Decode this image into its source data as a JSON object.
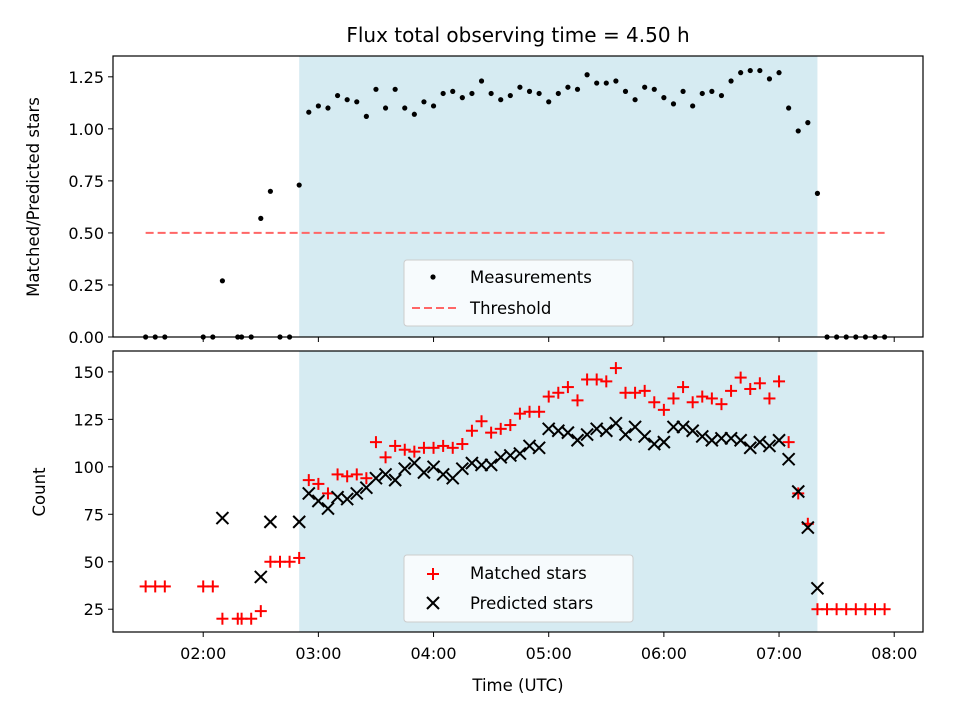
{
  "chart_data": {
    "title": "Flux total observing time = 4.50 h",
    "xlabel": "Time (UTC)",
    "x_ticks": [
      "02:00",
      "03:00",
      "04:00",
      "05:00",
      "06:00",
      "07:00",
      "08:00"
    ],
    "x_range": [
      "01:13",
      "08:15"
    ],
    "observing_window": [
      "02:50",
      "07:20"
    ],
    "colors": {
      "window": "#add8e6",
      "measurements": "#000000",
      "threshold": "#ff6666",
      "matched": "#ff0000",
      "predicted": "#000000"
    },
    "panels": [
      {
        "type": "scatter",
        "ylabel": "Matched/Predicted stars",
        "ylim": [
          0,
          1.35
        ],
        "y_ticks": [
          "0.00",
          "0.25",
          "0.50",
          "0.75",
          "1.00",
          "1.25"
        ],
        "legend": "lower-center",
        "series": [
          {
            "name": "Measurements",
            "marker": "dot",
            "points": [
              [
                "01:30",
                0
              ],
              [
                "01:35",
                0
              ],
              [
                "01:40",
                0
              ],
              [
                "02:00",
                0
              ],
              [
                "02:05",
                0
              ],
              [
                "02:10",
                0.27
              ],
              [
                "02:18",
                0
              ],
              [
                "02:20",
                0
              ],
              [
                "02:25",
                0
              ],
              [
                "02:30",
                0.57
              ],
              [
                "02:35",
                0.7
              ],
              [
                "02:40",
                0
              ],
              [
                "02:45",
                0
              ],
              [
                "02:50",
                0.73
              ],
              [
                "02:55",
                1.08
              ],
              [
                "03:00",
                1.11
              ],
              [
                "03:05",
                1.1
              ],
              [
                "03:10",
                1.16
              ],
              [
                "03:15",
                1.14
              ],
              [
                "03:20",
                1.13
              ],
              [
                "03:25",
                1.06
              ],
              [
                "03:30",
                1.19
              ],
              [
                "03:35",
                1.1
              ],
              [
                "03:40",
                1.19
              ],
              [
                "03:45",
                1.1
              ],
              [
                "03:50",
                1.07
              ],
              [
                "03:55",
                1.13
              ],
              [
                "04:00",
                1.11
              ],
              [
                "04:05",
                1.17
              ],
              [
                "04:10",
                1.18
              ],
              [
                "04:15",
                1.15
              ],
              [
                "04:20",
                1.17
              ],
              [
                "04:25",
                1.23
              ],
              [
                "04:30",
                1.17
              ],
              [
                "04:35",
                1.14
              ],
              [
                "04:40",
                1.16
              ],
              [
                "04:45",
                1.2
              ],
              [
                "04:50",
                1.18
              ],
              [
                "04:55",
                1.17
              ],
              [
                "05:00",
                1.13
              ],
              [
                "05:05",
                1.17
              ],
              [
                "05:10",
                1.2
              ],
              [
                "05:15",
                1.19
              ],
              [
                "05:20",
                1.26
              ],
              [
                "05:25",
                1.22
              ],
              [
                "05:30",
                1.22
              ],
              [
                "05:35",
                1.23
              ],
              [
                "05:40",
                1.18
              ],
              [
                "05:45",
                1.14
              ],
              [
                "05:50",
                1.2
              ],
              [
                "05:55",
                1.19
              ],
              [
                "06:00",
                1.15
              ],
              [
                "06:05",
                1.12
              ],
              [
                "06:10",
                1.18
              ],
              [
                "06:15",
                1.11
              ],
              [
                "06:20",
                1.17
              ],
              [
                "06:25",
                1.18
              ],
              [
                "06:30",
                1.16
              ],
              [
                "06:35",
                1.23
              ],
              [
                "06:40",
                1.27
              ],
              [
                "06:45",
                1.28
              ],
              [
                "06:50",
                1.28
              ],
              [
                "06:55",
                1.24
              ],
              [
                "07:00",
                1.27
              ],
              [
                "07:05",
                1.1
              ],
              [
                "07:10",
                0.99
              ],
              [
                "07:15",
                1.03
              ],
              [
                "07:20",
                0.69
              ],
              [
                "07:25",
                0
              ],
              [
                "07:30",
                0
              ],
              [
                "07:35",
                0
              ],
              [
                "07:40",
                0
              ],
              [
                "07:45",
                0
              ],
              [
                "07:50",
                0
              ],
              [
                "07:55",
                0
              ]
            ]
          },
          {
            "name": "Threshold",
            "line": "dashed",
            "value": 0.5,
            "x_span": [
              "01:30",
              "07:55"
            ]
          }
        ]
      },
      {
        "type": "scatter",
        "ylabel": "Count",
        "ylim": [
          13,
          161
        ],
        "y_ticks": [
          "25",
          "50",
          "75",
          "100",
          "125",
          "150"
        ],
        "legend": "lower-center",
        "series": [
          {
            "name": "Matched stars",
            "marker": "plus",
            "points": [
              [
                "01:30",
                37
              ],
              [
                "01:35",
                37
              ],
              [
                "01:40",
                37
              ],
              [
                "02:00",
                37
              ],
              [
                "02:05",
                37
              ],
              [
                "02:10",
                20
              ],
              [
                "02:18",
                20
              ],
              [
                "02:20",
                20
              ],
              [
                "02:25",
                20
              ],
              [
                "02:30",
                24
              ],
              [
                "02:35",
                50
              ],
              [
                "02:40",
                50
              ],
              [
                "02:45",
                50
              ],
              [
                "02:50",
                52
              ],
              [
                "02:55",
                93
              ],
              [
                "03:00",
                91
              ],
              [
                "03:05",
                86
              ],
              [
                "03:10",
                96
              ],
              [
                "03:15",
                95
              ],
              [
                "03:20",
                96
              ],
              [
                "03:25",
                94
              ],
              [
                "03:30",
                113
              ],
              [
                "03:35",
                105
              ],
              [
                "03:40",
                111
              ],
              [
                "03:45",
                109
              ],
              [
                "03:50",
                108
              ],
              [
                "03:55",
                110
              ],
              [
                "04:00",
                110
              ],
              [
                "04:05",
                111
              ],
              [
                "04:10",
                110
              ],
              [
                "04:15",
                112
              ],
              [
                "04:20",
                119
              ],
              [
                "04:25",
                124
              ],
              [
                "04:30",
                118
              ],
              [
                "04:35",
                120
              ],
              [
                "04:40",
                122
              ],
              [
                "04:45",
                128
              ],
              [
                "04:50",
                129
              ],
              [
                "04:55",
                129
              ],
              [
                "05:00",
                137
              ],
              [
                "05:05",
                139
              ],
              [
                "05:10",
                142
              ],
              [
                "05:15",
                135
              ],
              [
                "05:20",
                146
              ],
              [
                "05:25",
                146
              ],
              [
                "05:30",
                145
              ],
              [
                "05:35",
                152
              ],
              [
                "05:40",
                139
              ],
              [
                "05:45",
                139
              ],
              [
                "05:50",
                140
              ],
              [
                "05:55",
                134
              ],
              [
                "06:00",
                130
              ],
              [
                "06:05",
                136
              ],
              [
                "06:10",
                142
              ],
              [
                "06:15",
                134
              ],
              [
                "06:20",
                137
              ],
              [
                "06:25",
                136
              ],
              [
                "06:30",
                133
              ],
              [
                "06:35",
                140
              ],
              [
                "06:40",
                147
              ],
              [
                "06:45",
                141
              ],
              [
                "06:50",
                144
              ],
              [
                "06:55",
                136
              ],
              [
                "07:00",
                145
              ],
              [
                "07:05",
                113
              ],
              [
                "07:10",
                86
              ],
              [
                "07:15",
                70
              ],
              [
                "07:20",
                25
              ],
              [
                "07:25",
                25
              ],
              [
                "07:30",
                25
              ],
              [
                "07:35",
                25
              ],
              [
                "07:40",
                25
              ],
              [
                "07:45",
                25
              ],
              [
                "07:50",
                25
              ],
              [
                "07:55",
                25
              ]
            ]
          },
          {
            "name": "Predicted stars",
            "marker": "x",
            "points": [
              [
                "02:10",
                73
              ],
              [
                "02:30",
                42
              ],
              [
                "02:35",
                71
              ],
              [
                "02:50",
                71
              ],
              [
                "02:55",
                86
              ],
              [
                "03:00",
                82
              ],
              [
                "03:05",
                78
              ],
              [
                "03:10",
                84
              ],
              [
                "03:15",
                83
              ],
              [
                "03:20",
                86
              ],
              [
                "03:25",
                89
              ],
              [
                "03:30",
                94
              ],
              [
                "03:35",
                96
              ],
              [
                "03:40",
                93
              ],
              [
                "03:45",
                99
              ],
              [
                "03:50",
                102
              ],
              [
                "03:55",
                97
              ],
              [
                "04:00",
                100
              ],
              [
                "04:05",
                96
              ],
              [
                "04:10",
                94
              ],
              [
                "04:15",
                99
              ],
              [
                "04:20",
                102
              ],
              [
                "04:25",
                101
              ],
              [
                "04:30",
                101
              ],
              [
                "04:35",
                105
              ],
              [
                "04:40",
                106
              ],
              [
                "04:45",
                107
              ],
              [
                "04:50",
                111
              ],
              [
                "04:55",
                110
              ],
              [
                "05:00",
                120
              ],
              [
                "05:05",
                119
              ],
              [
                "05:10",
                118
              ],
              [
                "05:15",
                114
              ],
              [
                "05:20",
                117
              ],
              [
                "05:25",
                120
              ],
              [
                "05:30",
                119
              ],
              [
                "05:35",
                123
              ],
              [
                "05:40",
                117
              ],
              [
                "05:45",
                121
              ],
              [
                "05:50",
                116
              ],
              [
                "05:55",
                112
              ],
              [
                "06:00",
                113
              ],
              [
                "06:05",
                121
              ],
              [
                "06:10",
                121
              ],
              [
                "06:15",
                119
              ],
              [
                "06:20",
                116
              ],
              [
                "06:25",
                114
              ],
              [
                "06:30",
                115
              ],
              [
                "06:35",
                115
              ],
              [
                "06:40",
                114
              ],
              [
                "06:45",
                110
              ],
              [
                "06:50",
                113
              ],
              [
                "06:55",
                111
              ],
              [
                "07:00",
                114
              ],
              [
                "07:05",
                104
              ],
              [
                "07:10",
                87
              ],
              [
                "07:15",
                68
              ],
              [
                "07:20",
                36
              ]
            ]
          }
        ]
      }
    ]
  }
}
